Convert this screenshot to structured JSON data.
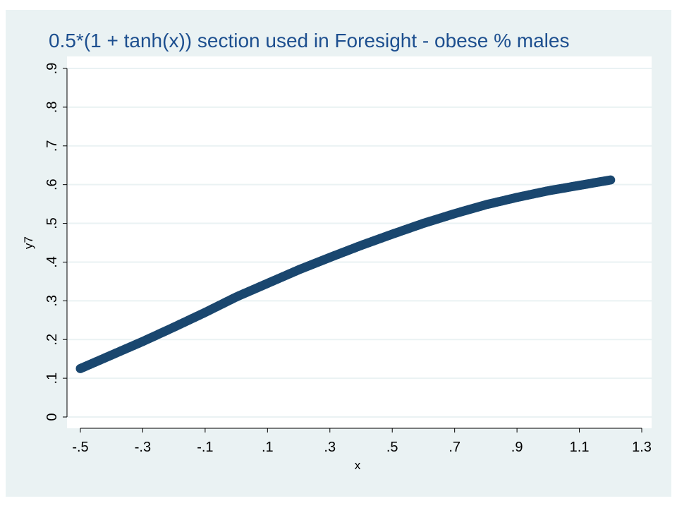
{
  "chart_data": {
    "type": "scatter",
    "title": "0.5*(1 + tanh(x)) section used in Foresight - obese % males",
    "xlabel": "x",
    "ylabel": "y7",
    "xlim": [
      -0.5,
      1.3
    ],
    "ylim": [
      0,
      0.9
    ],
    "xticks": [
      -0.5,
      -0.3,
      -0.1,
      0.1,
      0.3,
      0.5,
      0.7,
      0.9,
      1.1,
      1.3
    ],
    "xtick_labels": [
      "-.5",
      "-.3",
      "-.1",
      ".1",
      ".3",
      ".5",
      ".7",
      ".9",
      "1.1",
      "1.3"
    ],
    "yticks": [
      0,
      0.1,
      0.2,
      0.3,
      0.4,
      0.5,
      0.6,
      0.7,
      0.8,
      0.9
    ],
    "ytick_labels": [
      "0",
      ".1",
      ".2",
      ".3",
      ".4",
      ".5",
      ".6",
      ".7",
      ".8",
      ".9"
    ],
    "grid": "horizontal",
    "legend": "none",
    "series": [
      {
        "marker_color": "#1a476f",
        "x": [
          -0.5,
          -0.4,
          -0.3,
          -0.2,
          -0.1,
          0.0,
          0.1,
          0.2,
          0.3,
          0.4,
          0.5,
          0.6,
          0.7,
          0.8,
          0.9,
          1.0,
          1.1,
          1.2
        ],
        "y": [
          0.125,
          0.16,
          0.195,
          0.232,
          0.27,
          0.31,
          0.345,
          0.38,
          0.412,
          0.443,
          0.472,
          0.5,
          0.525,
          0.548,
          0.567,
          0.584,
          0.598,
          0.612
        ]
      }
    ]
  },
  "colors": {
    "title": "#1d4f8f",
    "plot_background": "#ffffff",
    "outer_background": "#eaf2f3",
    "gridline": "#eaf2f3",
    "marker": "#1a476f"
  }
}
